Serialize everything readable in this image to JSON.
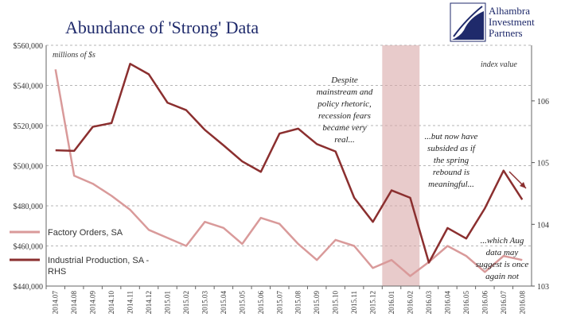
{
  "chart_data": {
    "type": "line",
    "title": "Abundance of 'Strong' Data",
    "left_unit_label": "millions of $s",
    "right_unit_label": "index value",
    "categories": [
      "2014.07",
      "2014.08",
      "2014.09",
      "2014.10",
      "2014.11",
      "2014.12",
      "2015.01",
      "2015.02",
      "2015.03",
      "2015.04",
      "2015.05",
      "2015.06",
      "2015.07",
      "2015.08",
      "2015.09",
      "2015.10",
      "2015.11",
      "2015.12",
      "2016.01",
      "2016.02",
      "2016.03",
      "2016.04",
      "2016.05",
      "2016.06",
      "2016.07",
      "2016.08"
    ],
    "left_axis": {
      "ylim": [
        440000,
        560000
      ],
      "ticks": [
        440000,
        460000,
        480000,
        500000,
        520000,
        540000,
        560000
      ],
      "tick_labels": [
        "$440,000",
        "$460,000",
        "$480,000",
        "$500,000",
        "$520,000",
        "$540,000",
        "$560,000"
      ]
    },
    "right_axis": {
      "ylim": [
        103,
        106.9
      ],
      "ticks": [
        103,
        104,
        105,
        106
      ],
      "tick_labels": [
        "103",
        "104",
        "105",
        "106"
      ]
    },
    "series": [
      {
        "name": "Factory Orders, SA",
        "axis": "left",
        "color": "#d99a9a",
        "values": [
          548000,
          495000,
          491000,
          485000,
          478000,
          468000,
          464000,
          460000,
          472000,
          469000,
          461000,
          474000,
          471000,
          461000,
          453000,
          463000,
          460000,
          449000,
          453000,
          445000,
          452000,
          460000,
          455000,
          447000,
          455000,
          453000
        ]
      },
      {
        "name": "Industrial Production, SA - RHS",
        "axis": "left_scale_rhs_values",
        "color": "#8b2f2f",
        "rhs_values": [
          105.2,
          105.19,
          105.58,
          105.64,
          106.6,
          106.43,
          105.97,
          105.85,
          105.53,
          105.28,
          105.02,
          104.85,
          105.47,
          105.55,
          105.3,
          105.18,
          104.43,
          104.04,
          104.55,
          104.43,
          103.38,
          103.94,
          103.77,
          104.26,
          104.87,
          104.4
        ]
      }
    ],
    "shaded_period": {
      "from": "2016.01",
      "to": "2016.02"
    },
    "annotations": [
      {
        "lines": [
          "Despite",
          "mainstream and",
          "policy rhetoric,",
          "recession fears",
          "became very",
          "real..."
        ]
      },
      {
        "lines": [
          "...but now have",
          "subsided as if",
          "the spring",
          "rebound is",
          "meaningful..."
        ]
      },
      {
        "lines": [
          "...which Aug",
          "data may",
          "suggest is once",
          "again not"
        ]
      }
    ],
    "legend": {
      "factory": "Factory Orders, SA",
      "ip_line1": "Industrial Production, SA -",
      "ip_line2": "RHS"
    }
  },
  "logo": {
    "line1": "Alhambra",
    "line2": "Investment",
    "line3": "Partners"
  }
}
